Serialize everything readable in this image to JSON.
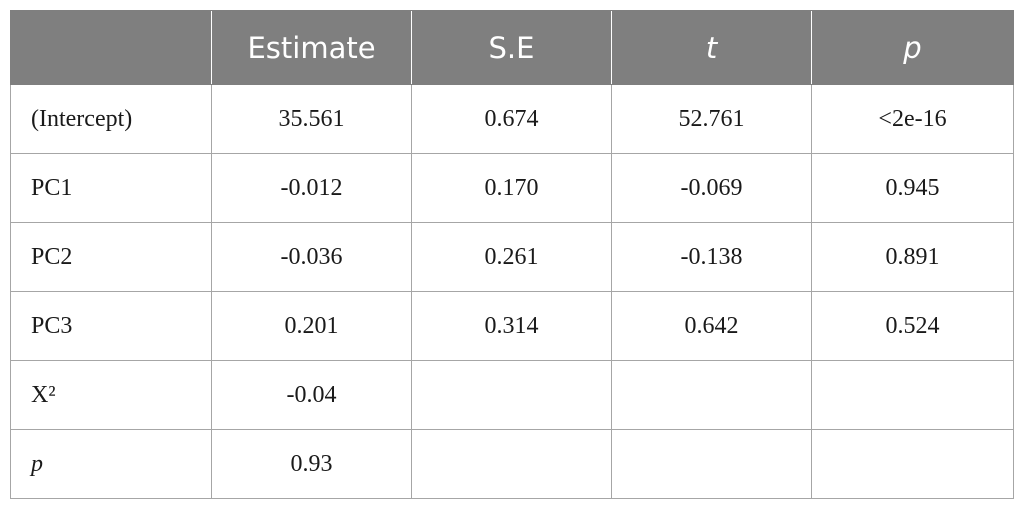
{
  "table": {
    "headers": [
      "",
      "Estimate",
      "S.E",
      "t",
      "p"
    ],
    "rows": [
      {
        "label": "(Intercept)",
        "estimate": "35.561",
        "se": "0.674",
        "t": "52.761",
        "p": "<2e-16"
      },
      {
        "label": "PC1",
        "estimate": "-0.012",
        "se": "0.170",
        "t": "-0.069",
        "p": "0.945"
      },
      {
        "label": "PC2",
        "estimate": "-0.036",
        "se": "0.261",
        "t": "-0.138",
        "p": "0.891"
      },
      {
        "label": "PC3",
        "estimate": "0.201",
        "se": "0.314",
        "t": "0.642",
        "p": "0.524"
      },
      {
        "label": "X²",
        "estimate": "-0.04",
        "se": "",
        "t": "",
        "p": ""
      },
      {
        "label": "p",
        "estimate": "0.93",
        "se": "",
        "t": "",
        "p": ""
      }
    ]
  },
  "colors": {
    "header_bg": "#7f7f7f",
    "header_text": "#ffffff",
    "border": "#a6a6a6"
  }
}
